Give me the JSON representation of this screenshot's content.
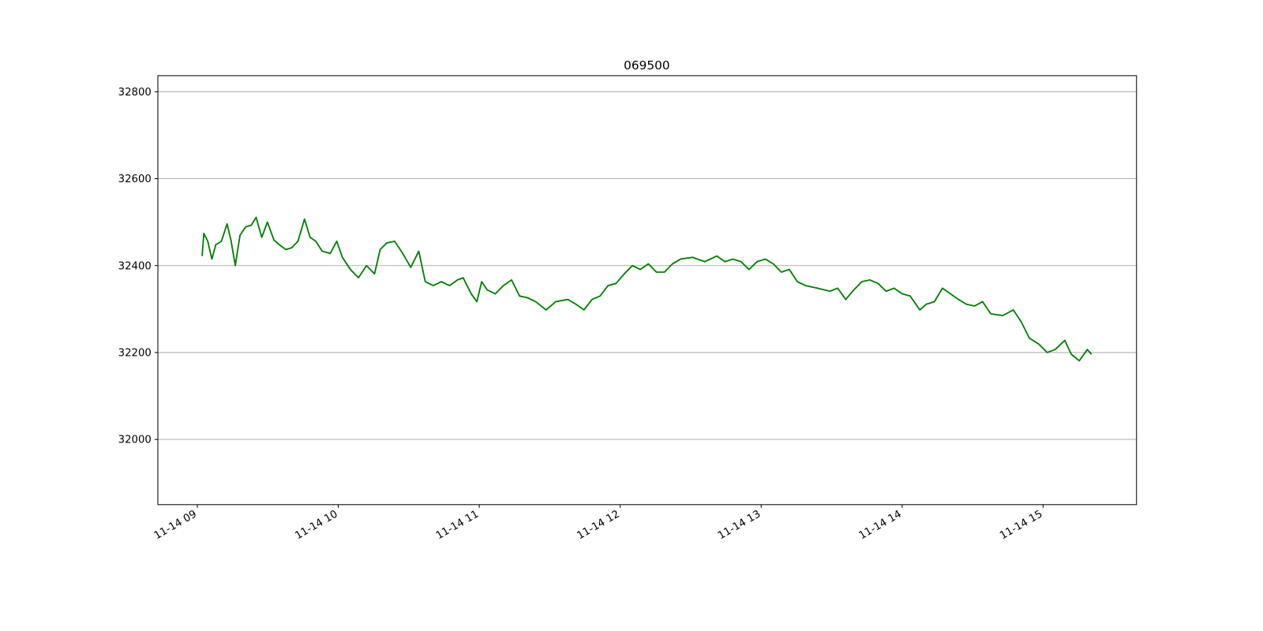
{
  "chart_data": {
    "type": "line",
    "title": "069500",
    "x": [
      9.034,
      9.046,
      9.074,
      9.103,
      9.131,
      9.171,
      9.211,
      9.24,
      9.269,
      9.303,
      9.343,
      9.383,
      9.417,
      9.457,
      9.497,
      9.543,
      9.589,
      9.629,
      9.669,
      9.714,
      9.76,
      9.8,
      9.84,
      9.886,
      9.943,
      9.989,
      10.029,
      10.086,
      10.143,
      10.2,
      10.257,
      10.297,
      10.343,
      10.4,
      10.457,
      10.514,
      10.571,
      10.617,
      10.674,
      10.731,
      10.789,
      10.846,
      10.886,
      10.943,
      10.983,
      11.017,
      11.057,
      11.114,
      11.171,
      11.229,
      11.286,
      11.343,
      11.4,
      11.474,
      11.543,
      11.629,
      11.686,
      11.743,
      11.8,
      11.857,
      11.914,
      11.971,
      12.029,
      12.086,
      12.143,
      12.2,
      12.257,
      12.314,
      12.371,
      12.429,
      12.514,
      12.6,
      12.686,
      12.743,
      12.8,
      12.857,
      12.914,
      12.971,
      13.029,
      13.086,
      13.143,
      13.2,
      13.257,
      13.314,
      13.4,
      13.486,
      13.543,
      13.6,
      13.657,
      13.714,
      13.771,
      13.829,
      13.886,
      13.943,
      14.0,
      14.057,
      14.126,
      14.171,
      14.229,
      14.286,
      14.343,
      14.4,
      14.457,
      14.514,
      14.571,
      14.629,
      14.714,
      14.789,
      14.846,
      14.903,
      14.971,
      15.029,
      15.086,
      15.154,
      15.2,
      15.257,
      15.314,
      15.343
    ],
    "series": [
      {
        "name": "069500",
        "color": "#008000",
        "values": [
          32422,
          32474,
          32456,
          32415,
          32448,
          32456,
          32496,
          32456,
          32400,
          32470,
          32489,
          32493,
          32511,
          32465,
          32500,
          32459,
          32446,
          32437,
          32441,
          32456,
          32507,
          32465,
          32456,
          32433,
          32428,
          32456,
          32419,
          32391,
          32372,
          32400,
          32381,
          32437,
          32452,
          32456,
          32428,
          32396,
          32433,
          32363,
          32354,
          32363,
          32354,
          32367,
          32372,
          32335,
          32317,
          32363,
          32344,
          32335,
          32354,
          32367,
          32330,
          32326,
          32317,
          32298,
          32317,
          32322,
          32311,
          32298,
          32322,
          32330,
          32354,
          32359,
          32381,
          32400,
          32391,
          32404,
          32385,
          32385,
          32404,
          32415,
          32419,
          32409,
          32422,
          32409,
          32415,
          32409,
          32391,
          32409,
          32415,
          32404,
          32385,
          32391,
          32363,
          32354,
          32348,
          32341,
          32348,
          32322,
          32344,
          32363,
          32367,
          32359,
          32341,
          32348,
          32335,
          32330,
          32298,
          32311,
          32317,
          32348,
          32335,
          32322,
          32311,
          32307,
          32317,
          32289,
          32285,
          32298,
          32270,
          32233,
          32219,
          32200,
          32207,
          32228,
          32196,
          32181,
          32207,
          32196
        ]
      }
    ],
    "xlim": [
      8.72,
      15.663
    ],
    "ylim": [
      31850,
      32837
    ],
    "xticks": [
      {
        "value": 9,
        "label": "11-14 09"
      },
      {
        "value": 10,
        "label": "11-14 10"
      },
      {
        "value": 11,
        "label": "11-14 11"
      },
      {
        "value": 12,
        "label": "11-14 12"
      },
      {
        "value": 13,
        "label": "11-14 13"
      },
      {
        "value": 14,
        "label": "11-14 14"
      },
      {
        "value": 15,
        "label": "11-14 15"
      }
    ],
    "yticks": [
      32000,
      32200,
      32400,
      32600,
      32800
    ],
    "grid": true
  }
}
